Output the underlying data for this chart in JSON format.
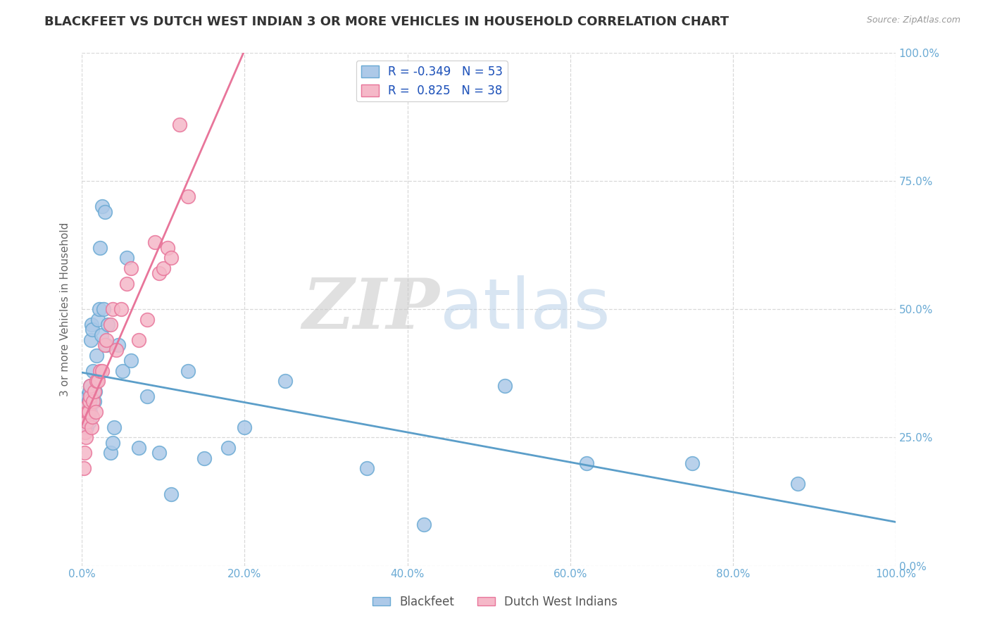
{
  "title": "BLACKFEET VS DUTCH WEST INDIAN 3 OR MORE VEHICLES IN HOUSEHOLD CORRELATION CHART",
  "source": "Source: ZipAtlas.com",
  "ylabel": "3 or more Vehicles in Household",
  "watermark_zip": "ZIP",
  "watermark_atlas": "atlas",
  "blackfeet_R": -0.349,
  "blackfeet_N": 53,
  "dutch_R": 0.825,
  "dutch_N": 38,
  "blackfeet_color": "#adc9e8",
  "blackfeet_edge_color": "#6aaad4",
  "dutch_color": "#f5b8c8",
  "dutch_edge_color": "#e8759a",
  "blackfeet_line_color": "#5b9ec9",
  "dutch_line_color": "#e8759a",
  "bg_color": "#ffffff",
  "grid_color": "#d8d8d8",
  "title_color": "#333333",
  "source_color": "#999999",
  "tick_color": "#6aaad4",
  "ylabel_color": "#666666",
  "xlim": [
    0.0,
    1.0
  ],
  "ylim": [
    0.0,
    1.0
  ],
  "blackfeet_x": [
    0.002,
    0.003,
    0.004,
    0.005,
    0.005,
    0.006,
    0.006,
    0.007,
    0.007,
    0.008,
    0.008,
    0.009,
    0.009,
    0.01,
    0.01,
    0.011,
    0.012,
    0.013,
    0.014,
    0.015,
    0.016,
    0.018,
    0.02,
    0.021,
    0.022,
    0.024,
    0.025,
    0.027,
    0.028,
    0.03,
    0.032,
    0.035,
    0.038,
    0.04,
    0.045,
    0.05,
    0.055,
    0.06,
    0.07,
    0.08,
    0.095,
    0.11,
    0.13,
    0.15,
    0.18,
    0.2,
    0.25,
    0.35,
    0.42,
    0.52,
    0.62,
    0.75,
    0.88
  ],
  "blackfeet_y": [
    0.3,
    0.32,
    0.29,
    0.31,
    0.28,
    0.3,
    0.27,
    0.33,
    0.29,
    0.31,
    0.32,
    0.34,
    0.28,
    0.3,
    0.35,
    0.44,
    0.47,
    0.46,
    0.38,
    0.32,
    0.34,
    0.41,
    0.48,
    0.5,
    0.62,
    0.45,
    0.7,
    0.5,
    0.69,
    0.43,
    0.47,
    0.22,
    0.24,
    0.27,
    0.43,
    0.38,
    0.6,
    0.4,
    0.23,
    0.33,
    0.22,
    0.14,
    0.38,
    0.21,
    0.23,
    0.27,
    0.36,
    0.19,
    0.08,
    0.35,
    0.2,
    0.2,
    0.16
  ],
  "dutch_x": [
    0.002,
    0.003,
    0.004,
    0.005,
    0.005,
    0.006,
    0.006,
    0.007,
    0.008,
    0.009,
    0.01,
    0.01,
    0.012,
    0.013,
    0.014,
    0.015,
    0.017,
    0.018,
    0.02,
    0.022,
    0.025,
    0.028,
    0.03,
    0.035,
    0.038,
    0.042,
    0.048,
    0.055,
    0.06,
    0.07,
    0.08,
    0.09,
    0.095,
    0.1,
    0.105,
    0.11,
    0.12,
    0.13
  ],
  "dutch_y": [
    0.19,
    0.22,
    0.26,
    0.25,
    0.29,
    0.28,
    0.31,
    0.3,
    0.3,
    0.32,
    0.33,
    0.35,
    0.27,
    0.29,
    0.32,
    0.34,
    0.3,
    0.36,
    0.36,
    0.38,
    0.38,
    0.43,
    0.44,
    0.47,
    0.5,
    0.42,
    0.5,
    0.55,
    0.58,
    0.44,
    0.48,
    0.63,
    0.57,
    0.58,
    0.62,
    0.6,
    0.86,
    0.72
  ]
}
